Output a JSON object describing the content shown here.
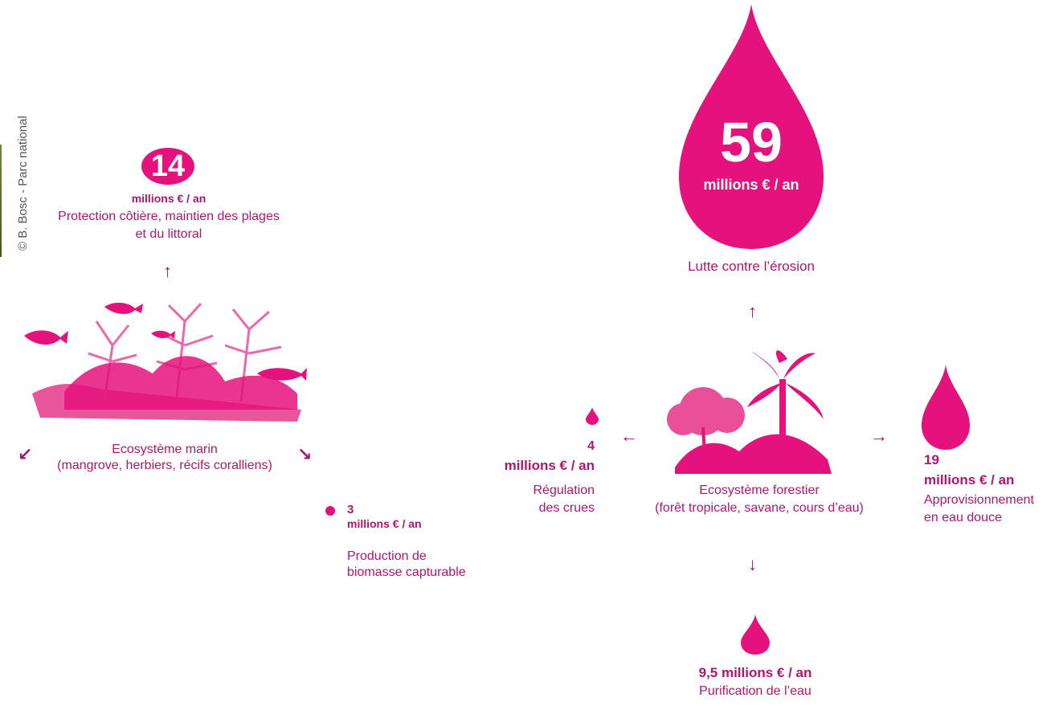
{
  "credit": "© B. Bosc - Parc national",
  "coastal": {
    "value": "14",
    "unit": "millions € / an",
    "desc_line1": "Protection côtière, maintien des plages",
    "desc_line2": "et du littoral"
  },
  "erosion": {
    "value": "59",
    "unit": "millions € / an",
    "desc": "Lutte contre l’érosion"
  },
  "marine": {
    "line1": "Ecosystème marin",
    "line2": "(mangrove, herbiers, récifs coralliens)"
  },
  "forest": {
    "line1": "Ecosystème forestier",
    "line2": "(forêt tropicale, savane, cours d’eau)"
  },
  "biomass": {
    "value": "3",
    "unit": "millions € / an",
    "desc_line1": "Production de",
    "desc_line2": "biomasse capturable"
  },
  "floods": {
    "value": "4",
    "unit": "millions € / an",
    "desc_line1": "Régulation",
    "desc_line2": "des crues"
  },
  "freshwater": {
    "value": "19",
    "unit": "millions € / an",
    "desc_line1": "Approvisionnement",
    "desc_line2": "en eau douce"
  },
  "purification": {
    "value": "9,5 millions € / an",
    "desc": "Purification de l’eau"
  },
  "colors": {
    "accent": "#e5127d",
    "dark": "#b0166e",
    "arrow": "#a3156a"
  }
}
